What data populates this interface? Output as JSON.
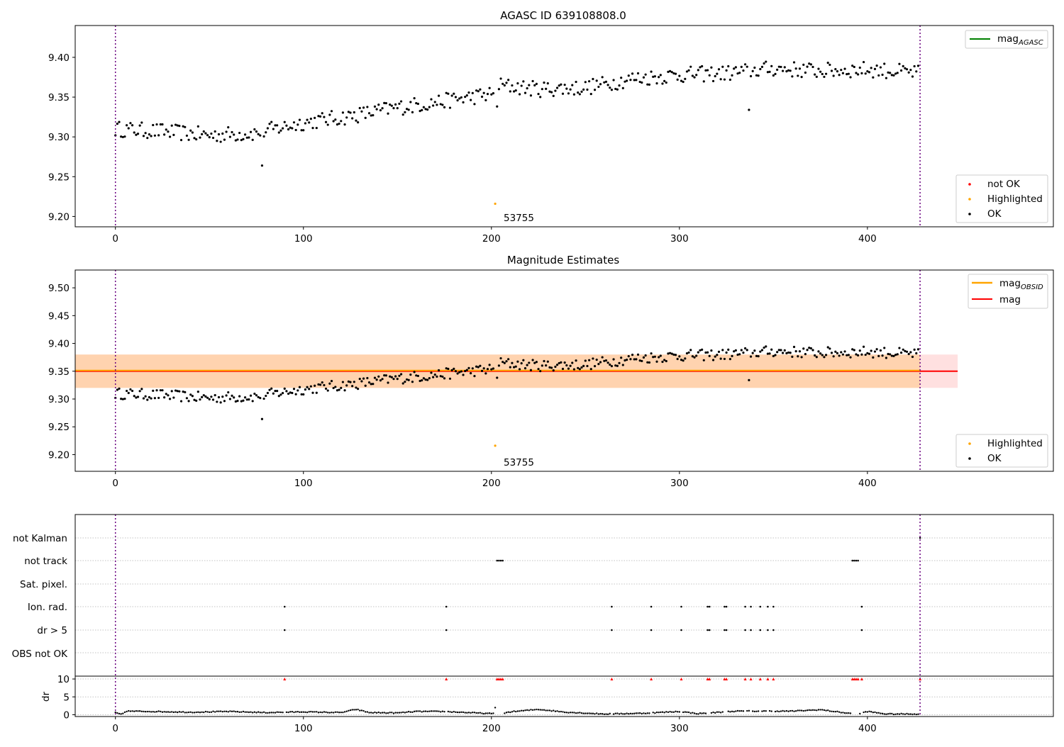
{
  "chart_data": [
    {
      "type": "scatter",
      "title": "AGASC ID 639108808.0",
      "xlabel": "",
      "ylabel": "",
      "xlim": [
        -21.4,
        498.9
      ],
      "ylim": [
        9.187,
        9.44
      ],
      "xticks": [
        0,
        100,
        200,
        300,
        400
      ],
      "yticks": [
        9.2,
        9.25,
        9.3,
        9.35,
        9.4
      ],
      "grid": false,
      "vlines": [
        0,
        428
      ],
      "legend_upper": [
        {
          "label": "mag$_{AGASC}$",
          "text": "mag",
          "sub": "AGASC",
          "color": "#008000"
        }
      ],
      "legend_lower": [
        {
          "label": "not OK",
          "color": "#ff0000"
        },
        {
          "label": "Highlighted",
          "color": "#ffa500"
        },
        {
          "label": "OK",
          "color": "#000000"
        }
      ],
      "highlight": {
        "x": 202,
        "y": 9.216,
        "label": "53755"
      },
      "outliers": [
        [
          78,
          9.264
        ],
        [
          337,
          9.334
        ]
      ],
      "ok_series": {
        "name": "OK",
        "knots_x": [
          0,
          25,
          50,
          75,
          100,
          125,
          150,
          175,
          200,
          203,
          204,
          225,
          250,
          275,
          300,
          325,
          350,
          375,
          400,
          428
        ],
        "knots_y": [
          9.31,
          9.307,
          9.302,
          9.305,
          9.318,
          9.326,
          9.337,
          9.345,
          9.354,
          9.342,
          9.365,
          9.36,
          9.362,
          9.373,
          9.378,
          9.38,
          9.386,
          9.383,
          9.385,
          9.38
        ],
        "amplitude": 0.01,
        "n": 428
      }
    },
    {
      "type": "scatter",
      "title": "Magnitude Estimates",
      "xlabel": "",
      "ylabel": "",
      "xlim": [
        -21.4,
        498.9
      ],
      "ylim": [
        9.17,
        9.532
      ],
      "xticks": [
        0,
        100,
        200,
        300,
        400
      ],
      "yticks": [
        9.2,
        9.25,
        9.3,
        9.35,
        9.4,
        9.45,
        9.5
      ],
      "grid": false,
      "vlines": [
        0,
        428
      ],
      "bands": [
        {
          "name": "mag",
          "center": 9.35,
          "low": 9.32,
          "high": 9.38,
          "x_range": [
            -21.4,
            448
          ],
          "color": "#ff0000"
        },
        {
          "name": "mag$_{OBSID}$",
          "center": 9.35,
          "low": 9.32,
          "high": 9.38,
          "x_range": [
            -21.4,
            428
          ],
          "color": "#ffa500"
        }
      ],
      "legend_upper": [
        {
          "label": "mag$_{OBSID}$",
          "text": "mag",
          "sub": "OBSID",
          "color": "#ffa500"
        },
        {
          "label": "mag",
          "text": "mag",
          "sub": "",
          "color": "#ff0000"
        }
      ],
      "legend_lower": [
        {
          "label": "Highlighted",
          "color": "#ffa500"
        },
        {
          "label": "OK",
          "color": "#000000"
        }
      ],
      "highlight": {
        "x": 202,
        "y": 9.216,
        "label": "53755"
      },
      "outliers": [
        [
          78,
          9.264
        ],
        [
          337,
          9.334
        ]
      ]
    },
    {
      "type": "scatter",
      "title": "",
      "xlim": [
        -21.4,
        498.9
      ],
      "xticks": [
        0,
        100,
        200,
        300,
        400
      ],
      "vlines": [
        0,
        428
      ],
      "flag_rows": [
        "not Kalman",
        "not track",
        "Sat. pixel.",
        "Ion. rad.",
        "dr > 5",
        "OBS not OK"
      ],
      "flags": {
        "not Kalman": [
          428
        ],
        "not track": [
          203,
          204,
          205,
          206,
          392,
          393,
          394,
          395
        ],
        "Sat. pixel.": [],
        "Ion. rad.": [
          90,
          176,
          264,
          285,
          301,
          315,
          316,
          324,
          325,
          335,
          338,
          343,
          347,
          350,
          397
        ],
        "dr > 5": [
          90,
          176,
          264,
          285,
          301,
          315,
          316,
          324,
          325,
          335,
          338,
          343,
          347,
          350,
          397
        ],
        "OBS not OK": []
      },
      "dr": {
        "ylabel": "dr",
        "ylim": [
          -0.5,
          10.8
        ],
        "yticks": [
          0,
          5,
          10
        ],
        "clip_value": 10,
        "clipped_x": [
          90,
          176,
          203,
          204,
          205,
          206,
          264,
          285,
          301,
          315,
          316,
          324,
          325,
          335,
          338,
          343,
          347,
          350,
          392,
          393,
          394,
          395,
          397,
          428
        ],
        "spike": [
          202,
          2.0
        ],
        "knots_x": [
          0,
          3,
          6,
          20,
          40,
          60,
          80,
          100,
          120,
          128,
          135,
          150,
          160,
          175,
          200,
          205,
          210,
          225,
          240,
          260,
          280,
          300,
          310,
          330,
          360,
          375,
          390,
          395,
          400,
          410,
          428
        ],
        "knots_y": [
          0.6,
          0.1,
          1.0,
          0.9,
          0.7,
          0.9,
          0.6,
          0.8,
          0.6,
          1.5,
          0.6,
          0.5,
          0.9,
          0.9,
          0.3,
          0.3,
          0.8,
          1.5,
          0.7,
          0.2,
          0.4,
          0.9,
          0.3,
          1.0,
          1.0,
          1.4,
          0.4,
          0.2,
          0.9,
          0.2,
          0.2
        ]
      }
    }
  ]
}
